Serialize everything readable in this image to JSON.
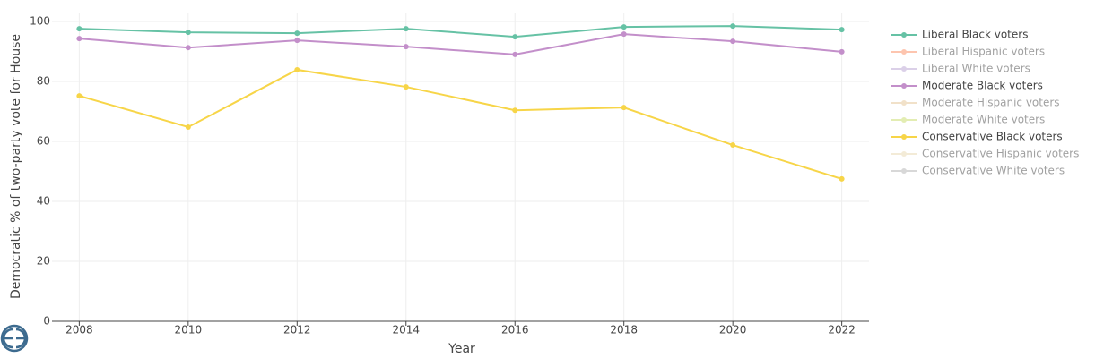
{
  "chart_data": {
    "type": "line",
    "x": [
      2008,
      2010,
      2012,
      2014,
      2016,
      2018,
      2020,
      2022
    ],
    "xlabel": "Year",
    "ylabel": "Democratic % of two-party vote for House",
    "xlim": [
      2007.5,
      2022.5
    ],
    "xticks": [
      2008,
      2010,
      2012,
      2014,
      2016,
      2018,
      2020,
      2022
    ],
    "ylim": [
      0,
      103
    ],
    "yticks": [
      0,
      20,
      40,
      60,
      80,
      100
    ],
    "grid": true,
    "legend": "right",
    "series": [
      {
        "name": "Liberal Black voters",
        "color": "#66c2a5",
        "visible": true,
        "values": [
          97.6,
          96.4,
          96.1,
          97.6,
          94.9,
          98.2,
          98.5,
          97.3
        ]
      },
      {
        "name": "Liberal Hispanic voters",
        "color": "#fc8d62",
        "visible": false,
        "values": [
          null,
          null,
          null,
          null,
          null,
          null,
          null,
          null
        ]
      },
      {
        "name": "Liberal White voters",
        "color": "#b9a3d3",
        "visible": false,
        "values": [
          null,
          null,
          null,
          null,
          null,
          null,
          null,
          null
        ]
      },
      {
        "name": "Moderate Black voters",
        "color": "#c38fca",
        "visible": true,
        "values": [
          94.3,
          91.3,
          93.7,
          91.6,
          89.0,
          95.8,
          93.4,
          89.9
        ]
      },
      {
        "name": "Moderate Hispanic voters",
        "color": "#e5c494",
        "visible": false,
        "values": [
          null,
          null,
          null,
          null,
          null,
          null,
          null,
          null
        ]
      },
      {
        "name": "Moderate White voters",
        "color": "#c8dc6a",
        "visible": false,
        "values": [
          null,
          null,
          null,
          null,
          null,
          null,
          null,
          null
        ]
      },
      {
        "name": "Conservative Black voters",
        "color": "#f7d548",
        "visible": true,
        "values": [
          75.2,
          64.8,
          83.9,
          78.2,
          70.4,
          71.3,
          58.8,
          47.5
        ]
      },
      {
        "name": "Conservative Hispanic voters",
        "color": "#e8d8b0",
        "visible": false,
        "values": [
          null,
          null,
          null,
          null,
          null,
          null,
          null,
          null
        ]
      },
      {
        "name": "Conservative White voters",
        "color": "#b3b3b3",
        "visible": false,
        "values": [
          null,
          null,
          null,
          null,
          null,
          null,
          null,
          null
        ]
      }
    ]
  }
}
